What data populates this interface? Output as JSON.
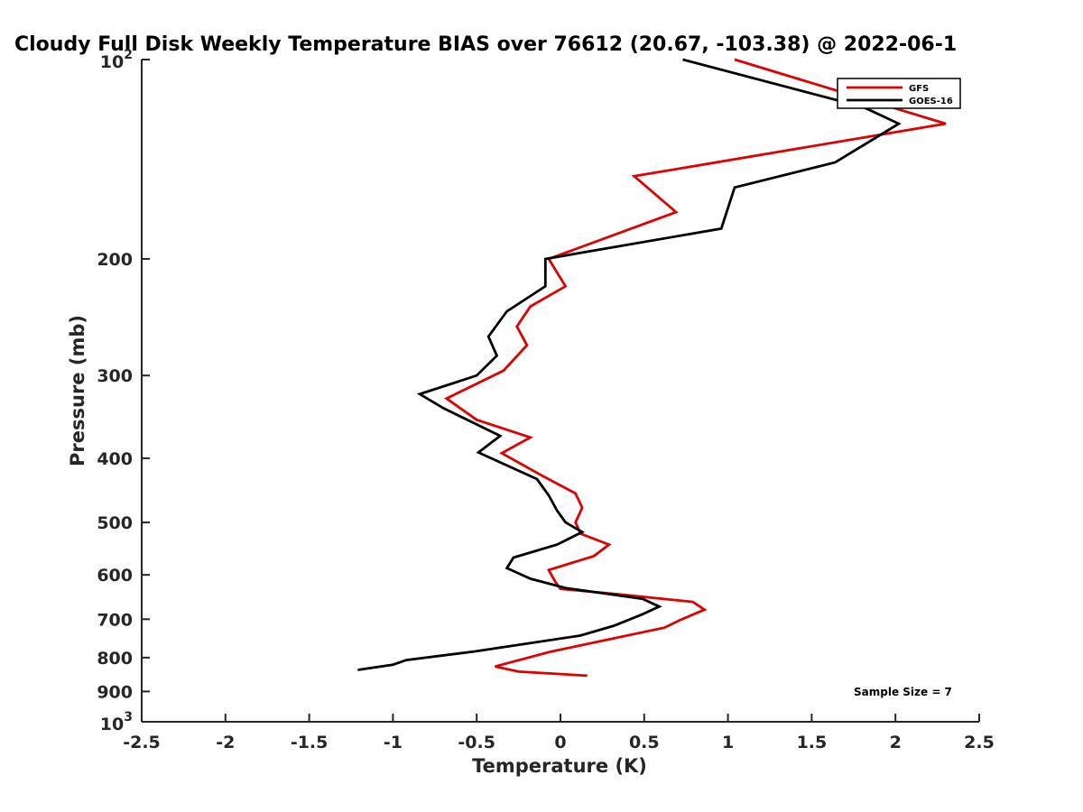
{
  "chart_data": {
    "type": "line",
    "title": "Cloudy Full Disk Weekly Temperature BIAS over 76612 (20.67, -103.38) @ 2022-06-1",
    "xlabel": "Temperature (K)",
    "ylabel": "Pressure (mb)",
    "xlim": [
      -2.5,
      2.5
    ],
    "ylim": [
      1000,
      100
    ],
    "yscale": "log",
    "x_ticks": [
      "-2.5",
      "-2",
      "-1.5",
      "-1",
      "-0.5",
      "0",
      "0.5",
      "1",
      "1.5",
      "2",
      "2.5"
    ],
    "x_tick_values": [
      -2.5,
      -2,
      -1.5,
      -1,
      -0.5,
      0,
      0.5,
      1,
      1.5,
      2,
      2.5
    ],
    "y_ticks": [
      {
        "value": 100,
        "base": "10",
        "exp": "2"
      },
      {
        "value": 200,
        "label": "200"
      },
      {
        "value": 300,
        "label": "300"
      },
      {
        "value": 400,
        "label": "400"
      },
      {
        "value": 500,
        "label": "500"
      },
      {
        "value": 600,
        "label": "600"
      },
      {
        "value": 700,
        "label": "700"
      },
      {
        "value": 800,
        "label": "800"
      },
      {
        "value": 900,
        "label": "900"
      },
      {
        "value": 1000,
        "base": "10",
        "exp": "3"
      }
    ],
    "grid": false,
    "legend_position": "top-right",
    "annotation": "Sample Size = 7",
    "series": [
      {
        "name": "GFS",
        "color": "#e00000",
        "points": [
          [
            1.04,
            100
          ],
          [
            2.3,
            125
          ],
          [
            0.44,
            150
          ],
          [
            0.69,
            170
          ],
          [
            -0.07,
            200
          ],
          [
            0.03,
            220
          ],
          [
            -0.18,
            236
          ],
          [
            -0.26,
            253
          ],
          [
            -0.2,
            270
          ],
          [
            -0.34,
            295
          ],
          [
            -0.68,
            325
          ],
          [
            -0.5,
            350
          ],
          [
            -0.18,
            372
          ],
          [
            -0.35,
            393
          ],
          [
            -0.11,
            425
          ],
          [
            0.09,
            452
          ],
          [
            0.13,
            475
          ],
          [
            0.09,
            500
          ],
          [
            0.12,
            520
          ],
          [
            0.29,
            540
          ],
          [
            0.2,
            562
          ],
          [
            -0.07,
            590
          ],
          [
            -0.03,
            615
          ],
          [
            0.0,
            630
          ],
          [
            0.29,
            640
          ],
          [
            0.79,
            659
          ],
          [
            0.86,
            677
          ],
          [
            0.72,
            701
          ],
          [
            0.62,
            721
          ],
          [
            -0.06,
            784
          ],
          [
            -0.39,
            825
          ],
          [
            -0.25,
            840
          ],
          [
            0.16,
            852
          ]
        ]
      },
      {
        "name": "GOES-16",
        "color": "#000000",
        "points": [
          [
            0.73,
            100
          ],
          [
            1.81,
            118
          ],
          [
            2.02,
            125
          ],
          [
            1.64,
            143
          ],
          [
            1.04,
            156
          ],
          [
            0.96,
            180
          ],
          [
            -0.09,
            200
          ],
          [
            -0.09,
            210
          ],
          [
            -0.09,
            220
          ],
          [
            -0.32,
            240
          ],
          [
            -0.43,
            262
          ],
          [
            -0.38,
            280
          ],
          [
            -0.5,
            300
          ],
          [
            -0.84,
            320
          ],
          [
            -0.7,
            336
          ],
          [
            -0.36,
            370
          ],
          [
            -0.49,
            392
          ],
          [
            -0.14,
            430
          ],
          [
            -0.07,
            455
          ],
          [
            -0.02,
            480
          ],
          [
            0.03,
            500
          ],
          [
            0.13,
            517
          ],
          [
            -0.02,
            540
          ],
          [
            -0.28,
            565
          ],
          [
            -0.32,
            586
          ],
          [
            -0.18,
            608
          ],
          [
            0.03,
            628
          ],
          [
            0.49,
            652
          ],
          [
            0.59,
            670
          ],
          [
            0.49,
            688
          ],
          [
            0.32,
            716
          ],
          [
            0.12,
            741
          ],
          [
            -0.51,
            783
          ],
          [
            -0.92,
            807
          ],
          [
            -1.0,
            820
          ],
          [
            -1.21,
            835
          ]
        ]
      }
    ]
  }
}
